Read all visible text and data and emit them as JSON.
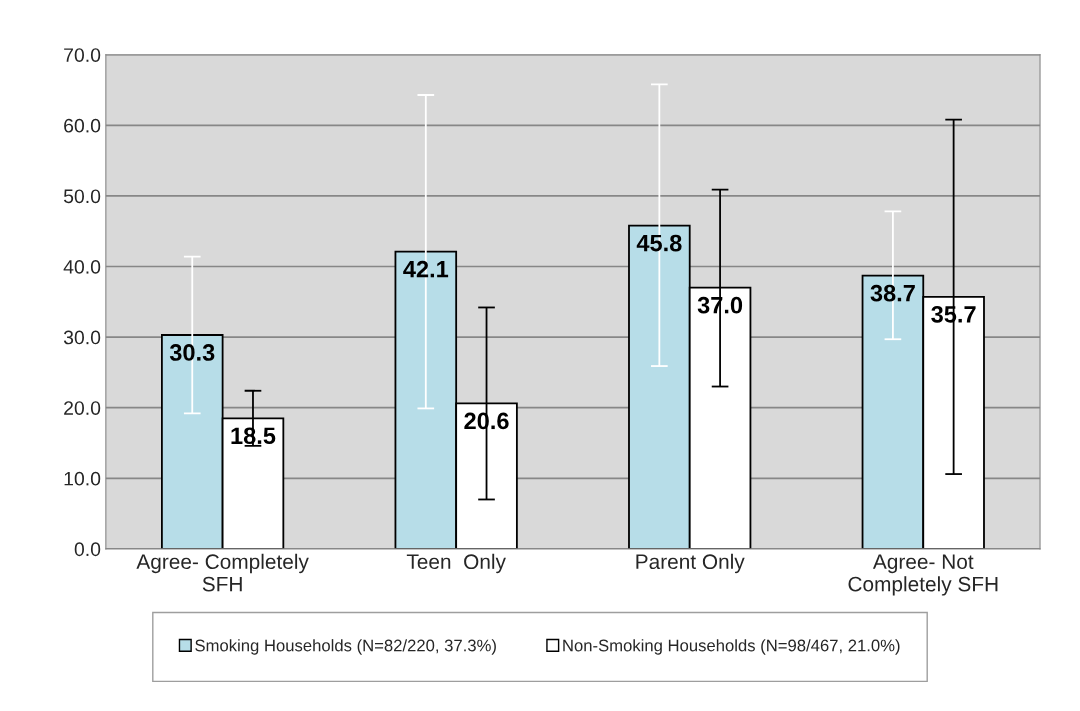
{
  "chart_data": {
    "type": "bar",
    "categories": [
      "Agree- Completely\nSFH",
      "Teen  Only",
      "Parent Only",
      "Agree- Not\nCompletely SFH"
    ],
    "series": [
      {
        "name": "Smoking Households (N=82/220, 37.3%)",
        "color": "#b7dde8",
        "values": [
          30.3,
          42.1,
          45.8,
          38.7
        ],
        "value_labels": [
          "30.3",
          "42.1",
          "45.8",
          "38.7"
        ],
        "errors": [
          [
            19.2,
            41.4
          ],
          [
            19.9,
            64.3
          ],
          [
            25.9,
            65.8
          ],
          [
            29.7,
            47.8
          ]
        ]
      },
      {
        "name": "Non-Smoking Households (N=98/467, 21.0%)",
        "color": "#ffffff",
        "values": [
          18.5,
          20.6,
          37.0,
          35.7
        ],
        "value_labels": [
          "18.5",
          "20.6",
          "37.0",
          "35.7"
        ],
        "errors": [
          [
            14.6,
            22.4
          ],
          [
            7.0,
            34.2
          ],
          [
            23.0,
            50.9
          ],
          [
            10.6,
            60.8
          ]
        ]
      }
    ],
    "ylim": [
      0,
      70
    ],
    "yticks": [
      {
        "value": 0,
        "label": "0.0"
      },
      {
        "value": 10,
        "label": "10.0"
      },
      {
        "value": 20,
        "label": "20.0"
      },
      {
        "value": 30,
        "label": "30.0"
      },
      {
        "value": 40,
        "label": "40.0"
      },
      {
        "value": 50,
        "label": "50.0"
      },
      {
        "value": 60,
        "label": "60.0"
      },
      {
        "value": 70,
        "label": "70.0"
      }
    ],
    "grid": "y",
    "legend": "bottom"
  }
}
